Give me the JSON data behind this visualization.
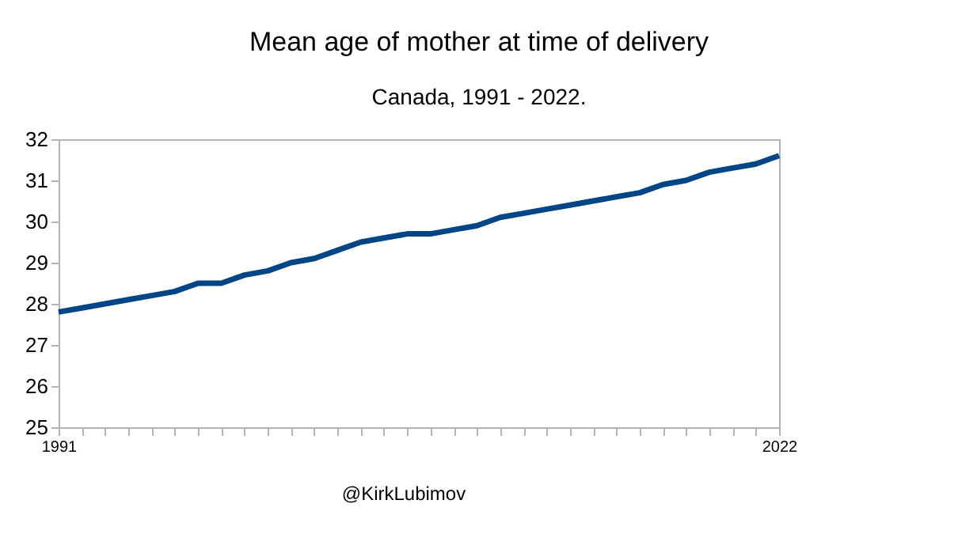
{
  "chart_data": {
    "type": "line",
    "title": "Mean age of mother at time of delivery",
    "subtitle": "Canada, 1991 - 2022.",
    "annotations": [
      "@KirkLubimov"
    ],
    "categories": [
      "1991",
      null,
      null,
      null,
      null,
      null,
      null,
      null,
      null,
      null,
      null,
      null,
      null,
      null,
      null,
      null,
      null,
      null,
      null,
      null,
      null,
      null,
      null,
      null,
      null,
      null,
      null,
      null,
      null,
      null,
      null,
      "2022"
    ],
    "series": [
      {
        "color": "#004586",
        "values": [
          27.8,
          27.9,
          28.0,
          28.1,
          28.2,
          28.3,
          28.5,
          28.5,
          28.7,
          28.8,
          29.0,
          29.1,
          29.3,
          29.5,
          29.6,
          29.7,
          29.7,
          29.8,
          29.9,
          30.1,
          30.2,
          30.3,
          30.4,
          30.5,
          30.6,
          30.7,
          30.9,
          31.0,
          31.2,
          31.3,
          31.4,
          31.6
        ]
      }
    ],
    "ylim": [
      25,
      32
    ],
    "yticks": [
      25,
      26,
      27,
      28,
      29,
      30,
      31,
      32
    ],
    "grid": false,
    "legend": false,
    "marker": "none",
    "line_style": "solid"
  }
}
